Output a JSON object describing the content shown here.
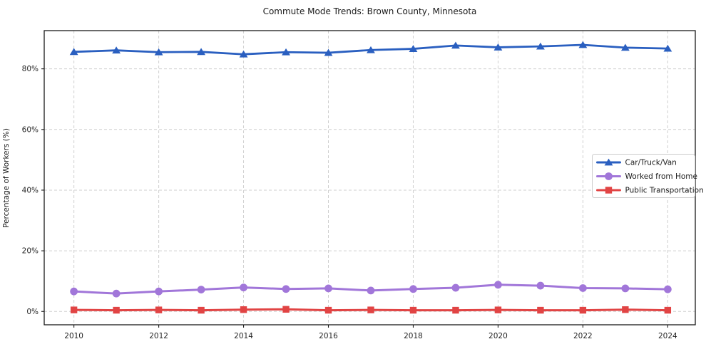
{
  "title": "Commute Mode Trends: Brown County, Minnesota",
  "chart_data": {
    "type": "line",
    "title": "Commute Mode Trends: Brown County, Minnesota",
    "xlabel": "",
    "ylabel": "Percentage of Workers (%)",
    "x": [
      2010,
      2011,
      2012,
      2013,
      2014,
      2015,
      2016,
      2017,
      2018,
      2019,
      2020,
      2021,
      2022,
      2023,
      2024
    ],
    "series": [
      {
        "name": "Car/Truck/Van",
        "color": "#2a5fc0",
        "marker": "triangle",
        "values": [
          85.6,
          86.1,
          85.5,
          85.6,
          84.8,
          85.5,
          85.3,
          86.2,
          86.6,
          87.7,
          87.1,
          87.4,
          87.9,
          87.0,
          86.7
        ]
      },
      {
        "name": "Worked from Home",
        "color": "#a176d9",
        "marker": "circle",
        "values": [
          6.6,
          5.9,
          6.6,
          7.2,
          7.9,
          7.4,
          7.6,
          6.9,
          7.4,
          7.8,
          8.8,
          8.5,
          7.7,
          7.6,
          7.3
        ]
      },
      {
        "name": "Public Transportation",
        "color": "#e14444",
        "marker": "square",
        "values": [
          0.5,
          0.4,
          0.5,
          0.4,
          0.6,
          0.7,
          0.4,
          0.5,
          0.4,
          0.4,
          0.5,
          0.4,
          0.4,
          0.6,
          0.4
        ]
      }
    ],
    "xticks": [
      2010,
      2012,
      2014,
      2016,
      2018,
      2020,
      2022,
      2024
    ],
    "xtick_labels": [
      "2010",
      "2012",
      "2014",
      "2016",
      "2018",
      "2020",
      "2022",
      "2024"
    ],
    "yticks": [
      0,
      20,
      40,
      60,
      80
    ],
    "ytick_labels": [
      "0%",
      "20%",
      "40%",
      "60%",
      "80%"
    ],
    "xlim": [
      2009.3,
      2024.65
    ],
    "ylim": [
      -4.4,
      92.6
    ],
    "grid": true,
    "grid_style": "dashed",
    "legend_position": "center right",
    "colors": {
      "grid": "#cfcfcf",
      "frame": "#1a1a1a",
      "tick_label": "#262626",
      "legend_border": "#cccccc",
      "legend_background": "#ffffff"
    }
  }
}
